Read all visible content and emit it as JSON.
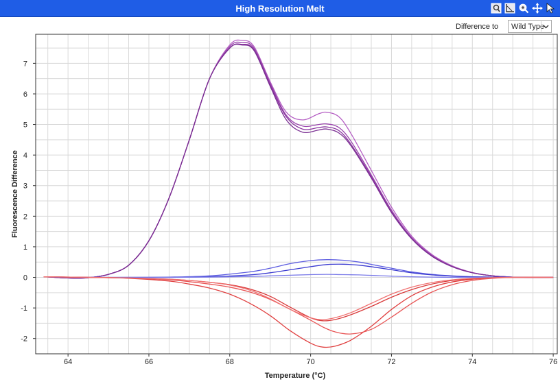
{
  "window": {
    "title": "High Resolution Melt"
  },
  "toolbar": {
    "icons": [
      "zoom-fit-icon",
      "axis-icon",
      "zoom-icon",
      "pan-icon",
      "pointer-icon"
    ]
  },
  "controls": {
    "difference_label": "Difference to",
    "difference_value": "Wild Type"
  },
  "colors": {
    "title_bar": "#1f5de6",
    "purple": "#8e3aa0",
    "blue": "#3a3ad8",
    "red": "#e23a3a",
    "grid": "#d9d9d9"
  },
  "chart_data": {
    "type": "line",
    "xlabel": "Temperature (°C)",
    "ylabel": "Fluorescence Difference",
    "xlim": [
      63.2,
      76.1
    ],
    "ylim": [
      -2.5,
      7.95
    ],
    "xticks": [
      64,
      66,
      68,
      70,
      72,
      74,
      76
    ],
    "yticks": [
      -2,
      -1,
      0,
      1,
      2,
      3,
      4,
      5,
      6,
      7
    ],
    "grid": true,
    "series": [
      {
        "color": "#b55fc4",
        "x": [
          63.4,
          64.0,
          64.5,
          65.0,
          65.5,
          66.0,
          66.5,
          67.0,
          67.5,
          68.0,
          68.3,
          68.6,
          69.0,
          69.4,
          69.8,
          70.2,
          70.4,
          70.7,
          71.0,
          71.5,
          72.0,
          72.5,
          73.0,
          73.5,
          74.0,
          74.5,
          75.0,
          75.5,
          76.0
        ],
        "y": [
          0.02,
          -0.02,
          -0.01,
          0.1,
          0.4,
          1.2,
          2.6,
          4.5,
          6.5,
          7.6,
          7.75,
          7.55,
          6.4,
          5.4,
          5.15,
          5.35,
          5.4,
          5.25,
          4.7,
          3.5,
          2.3,
          1.35,
          0.75,
          0.38,
          0.16,
          0.05,
          0.01,
          0,
          0
        ]
      },
      {
        "color": "#9b47ae",
        "x": [
          63.4,
          64.0,
          64.5,
          65.0,
          65.5,
          66.0,
          66.5,
          67.0,
          67.5,
          68.0,
          68.3,
          68.6,
          69.0,
          69.4,
          69.8,
          70.2,
          70.4,
          70.7,
          71.0,
          71.5,
          72.0,
          72.5,
          73.0,
          73.5,
          74.0,
          74.5,
          75.0,
          75.5,
          76.0
        ],
        "y": [
          0.02,
          -0.02,
          -0.01,
          0.1,
          0.4,
          1.2,
          2.6,
          4.5,
          6.5,
          7.55,
          7.68,
          7.5,
          6.35,
          5.3,
          4.95,
          5.0,
          5.02,
          4.9,
          4.45,
          3.35,
          2.2,
          1.3,
          0.72,
          0.36,
          0.15,
          0.05,
          0.01,
          0,
          0
        ]
      },
      {
        "color": "#8a35a0",
        "x": [
          63.4,
          64.0,
          64.5,
          65.0,
          65.5,
          66.0,
          66.5,
          67.0,
          67.5,
          68.0,
          68.3,
          68.6,
          69.0,
          69.4,
          69.8,
          70.2,
          70.4,
          70.7,
          71.0,
          71.5,
          72.0,
          72.5,
          73.0,
          73.5,
          74.0,
          74.5,
          75.0,
          75.5,
          76.0
        ],
        "y": [
          0.02,
          -0.02,
          -0.01,
          0.1,
          0.4,
          1.2,
          2.6,
          4.5,
          6.5,
          7.5,
          7.62,
          7.45,
          6.3,
          5.25,
          4.85,
          4.9,
          4.92,
          4.8,
          4.35,
          3.3,
          2.15,
          1.28,
          0.7,
          0.35,
          0.15,
          0.05,
          0.01,
          0,
          0
        ]
      },
      {
        "color": "#7a2e92",
        "x": [
          63.4,
          64.0,
          64.5,
          65.0,
          65.5,
          66.0,
          66.5,
          67.0,
          67.5,
          68.0,
          68.3,
          68.6,
          69.0,
          69.4,
          69.8,
          70.2,
          70.4,
          70.7,
          71.0,
          71.5,
          72.0,
          72.5,
          73.0,
          73.5,
          74.0,
          74.5,
          75.0,
          75.5,
          76.0
        ],
        "y": [
          0.02,
          -0.02,
          -0.01,
          0.1,
          0.4,
          1.2,
          2.6,
          4.5,
          6.5,
          7.5,
          7.6,
          7.42,
          6.25,
          5.15,
          4.75,
          4.82,
          4.85,
          4.72,
          4.3,
          3.25,
          2.12,
          1.26,
          0.69,
          0.35,
          0.15,
          0.05,
          0.01,
          0,
          0
        ]
      },
      {
        "color": "#5b5be0",
        "x": [
          63.4,
          64.5,
          65.5,
          66.5,
          67.5,
          68.5,
          69.0,
          69.5,
          70.0,
          70.4,
          70.8,
          71.2,
          71.6,
          72.0,
          72.5,
          73.0,
          73.5,
          74.0,
          74.5,
          75.0,
          76.0
        ],
        "y": [
          0.02,
          0,
          0,
          0.01,
          0.05,
          0.18,
          0.3,
          0.45,
          0.55,
          0.58,
          0.56,
          0.5,
          0.4,
          0.3,
          0.18,
          0.1,
          0.05,
          0.02,
          0.01,
          0,
          0
        ]
      },
      {
        "color": "#3a3ad0",
        "x": [
          63.4,
          64.5,
          65.5,
          66.5,
          67.5,
          68.5,
          69.0,
          69.5,
          70.0,
          70.4,
          70.8,
          71.2,
          71.6,
          72.0,
          72.5,
          73.0,
          73.5,
          74.0,
          74.5,
          75.0,
          76.0
        ],
        "y": [
          0.02,
          0,
          0,
          0,
          0.02,
          0.08,
          0.15,
          0.25,
          0.35,
          0.42,
          0.43,
          0.4,
          0.33,
          0.25,
          0.15,
          0.08,
          0.04,
          0.02,
          0.01,
          0,
          0
        ]
      },
      {
        "color": "#7a7ae8",
        "x": [
          63.4,
          64.5,
          65.5,
          66.5,
          67.5,
          68.5,
          69.0,
          69.5,
          70.0,
          70.4,
          70.8,
          71.2,
          71.6,
          72.0,
          72.5,
          73.0,
          73.5,
          74.0,
          75.0,
          76.0
        ],
        "y": [
          0.02,
          0,
          0,
          0,
          0.01,
          0.03,
          0.05,
          0.07,
          0.09,
          0.1,
          0.09,
          0.08,
          0.06,
          0.04,
          0.02,
          0.01,
          0,
          0,
          0,
          0
        ]
      },
      {
        "color": "#e04040",
        "x": [
          63.4,
          64.5,
          65.5,
          66.5,
          67.0,
          67.5,
          68.0,
          68.5,
          69.0,
          69.5,
          70.0,
          70.3,
          70.6,
          71.0,
          71.5,
          72.0,
          72.5,
          73.0,
          73.5,
          74.0,
          74.5,
          75.0,
          76.0
        ],
        "y": [
          0.02,
          0,
          -0.03,
          -0.12,
          -0.22,
          -0.35,
          -0.55,
          -0.85,
          -1.25,
          -1.75,
          -2.15,
          -2.28,
          -2.25,
          -2.05,
          -1.6,
          -1.05,
          -0.6,
          -0.32,
          -0.15,
          -0.06,
          -0.02,
          0,
          0
        ]
      },
      {
        "color": "#e85555",
        "x": [
          63.4,
          64.5,
          65.5,
          66.5,
          67.0,
          67.5,
          68.0,
          68.5,
          69.0,
          69.5,
          70.0,
          70.3,
          70.6,
          71.0,
          71.5,
          72.0,
          72.5,
          73.0,
          73.5,
          74.0,
          74.5,
          75.0,
          76.0
        ],
        "y": [
          0.02,
          0,
          -0.02,
          -0.08,
          -0.14,
          -0.22,
          -0.32,
          -0.48,
          -0.72,
          -1.05,
          -1.4,
          -1.62,
          -1.78,
          -1.85,
          -1.7,
          -1.3,
          -0.85,
          -0.48,
          -0.24,
          -0.1,
          -0.03,
          0,
          0
        ]
      },
      {
        "color": "#d83838",
        "x": [
          63.4,
          64.5,
          65.5,
          66.5,
          67.0,
          67.5,
          68.0,
          68.5,
          69.0,
          69.5,
          70.0,
          70.3,
          70.6,
          71.0,
          71.5,
          72.0,
          72.5,
          73.0,
          73.5,
          74.0,
          74.5,
          75.0,
          76.0
        ],
        "y": [
          0.02,
          0,
          -0.02,
          -0.06,
          -0.1,
          -0.16,
          -0.24,
          -0.38,
          -0.62,
          -0.98,
          -1.32,
          -1.42,
          -1.38,
          -1.22,
          -0.95,
          -0.65,
          -0.4,
          -0.22,
          -0.1,
          -0.04,
          -0.01,
          0,
          0
        ]
      },
      {
        "color": "#f07070",
        "x": [
          63.4,
          64.5,
          65.5,
          66.5,
          67.0,
          67.5,
          68.0,
          68.5,
          69.0,
          69.5,
          70.0,
          70.3,
          70.6,
          71.0,
          71.5,
          72.0,
          72.5,
          73.0,
          73.5,
          74.0,
          74.5,
          75.0,
          76.0
        ],
        "y": [
          0.02,
          0,
          -0.02,
          -0.06,
          -0.1,
          -0.16,
          -0.25,
          -0.42,
          -0.7,
          -1.05,
          -1.32,
          -1.38,
          -1.32,
          -1.15,
          -0.85,
          -0.55,
          -0.32,
          -0.17,
          -0.08,
          -0.03,
          -0.01,
          0,
          0
        ]
      }
    ]
  }
}
